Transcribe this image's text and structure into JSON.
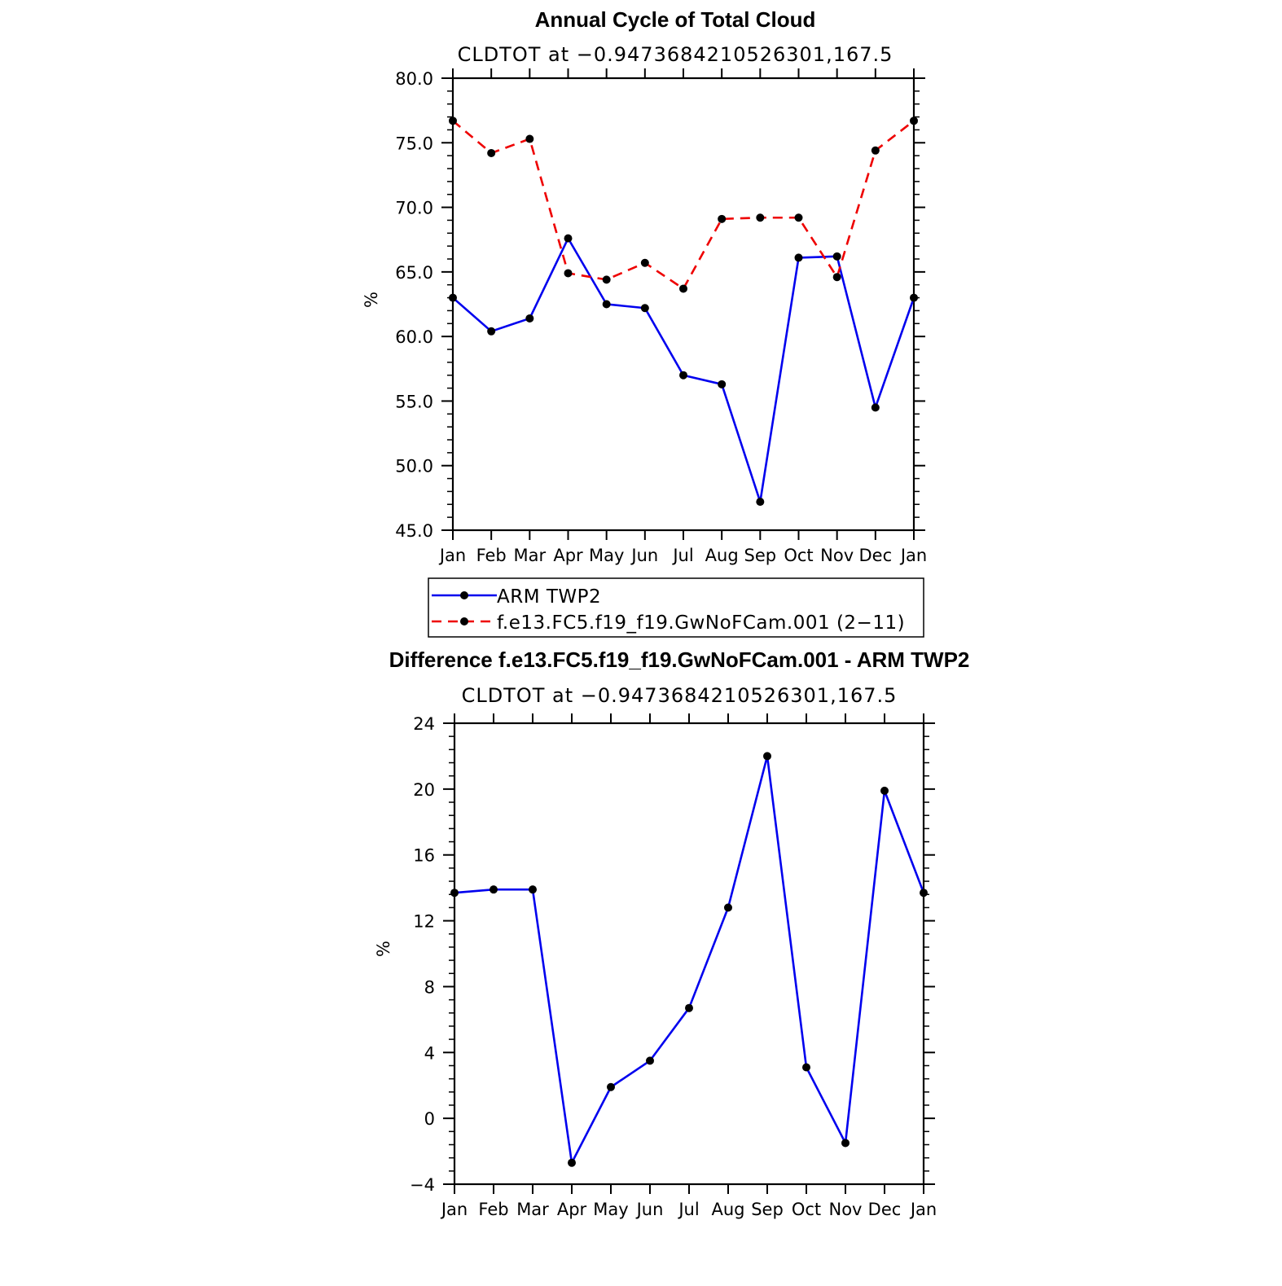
{
  "chart_data": [
    {
      "type": "line",
      "title": "Annual Cycle of Total Cloud",
      "subtitle": "CLDTOT at −0.9473684210526301,167.5",
      "xlabel": "",
      "ylabel": "%",
      "ylim": [
        45.0,
        80.0
      ],
      "yticks": [
        "45.0",
        "50.0",
        "55.0",
        "60.0",
        "65.0",
        "70.0",
        "75.0",
        "80.0"
      ],
      "ytick_values": [
        45,
        50,
        55,
        60,
        65,
        70,
        75,
        80
      ],
      "categories": [
        "Jan",
        "Feb",
        "Mar",
        "Apr",
        "May",
        "Jun",
        "Jul",
        "Aug",
        "Sep",
        "Oct",
        "Nov",
        "Dec",
        "Jan"
      ],
      "series": [
        {
          "name": "ARM TWP2",
          "color": "#0000ee",
          "dash": "solid",
          "values": [
            63.0,
            60.4,
            61.4,
            67.6,
            62.5,
            62.2,
            57.0,
            56.3,
            47.2,
            66.1,
            66.2,
            54.5,
            63.0
          ]
        },
        {
          "name": "f.e13.FC5.f19_f19.GwNoFCam.001 (2−11)",
          "color": "#ee0000",
          "dash": "dashed",
          "values": [
            76.7,
            74.2,
            75.3,
            64.9,
            64.4,
            65.7,
            63.7,
            69.1,
            69.2,
            69.2,
            64.6,
            74.4,
            76.7
          ]
        }
      ],
      "legend": [
        "ARM TWP2",
        "f.e13.FC5.f19_f19.GwNoFCam.001 (2−11)"
      ]
    },
    {
      "type": "line",
      "title": "Difference f.e13.FC5.f19_f19.GwNoFCam.001 - ARM TWP2",
      "subtitle": "CLDTOT at −0.9473684210526301,167.5",
      "xlabel": "",
      "ylabel": "%",
      "ylim": [
        -4,
        24
      ],
      "yticks": [
        "−4",
        "0",
        "4",
        "8",
        "12",
        "16",
        "20",
        "24"
      ],
      "ytick_values": [
        -4,
        0,
        4,
        8,
        12,
        16,
        20,
        24
      ],
      "categories": [
        "Jan",
        "Feb",
        "Mar",
        "Apr",
        "May",
        "Jun",
        "Jul",
        "Aug",
        "Sep",
        "Oct",
        "Nov",
        "Dec",
        "Jan"
      ],
      "series": [
        {
          "name": "difference",
          "color": "#0000ee",
          "dash": "solid",
          "values": [
            13.7,
            13.9,
            13.9,
            -2.7,
            1.9,
            3.5,
            6.7,
            12.8,
            22.0,
            3.1,
            -1.5,
            19.9,
            13.7
          ]
        }
      ]
    }
  ]
}
